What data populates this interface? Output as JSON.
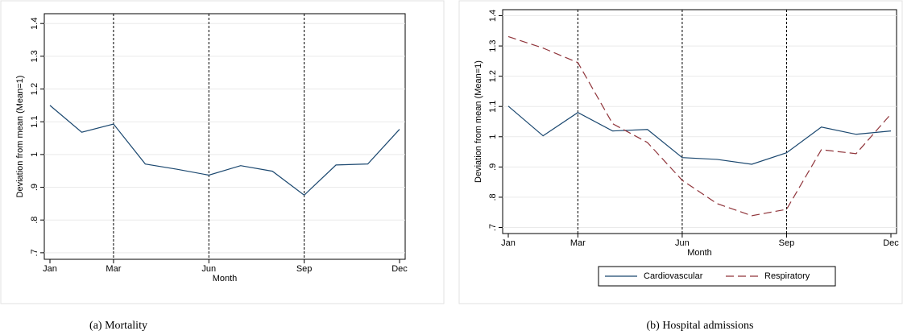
{
  "chart_data": [
    {
      "type": "line",
      "caption": "(a) Mortality",
      "xlabel": "Month",
      "ylabel": "Deviation from mean (Mean=1)",
      "categories": [
        "Jan",
        null,
        "Mar",
        null,
        null,
        "Jun",
        null,
        null,
        "Sep",
        null,
        null,
        "Dec"
      ],
      "series": [
        {
          "color": "#1a476f",
          "values": [
            1.15,
            1.068,
            1.093,
            0.971,
            0.955,
            0.937,
            0.966,
            0.949,
            0.876,
            0.968,
            0.971,
            1.077
          ]
        }
      ],
      "ylim": [
        0.68,
        1.43
      ],
      "yticks": [
        {
          "value": 0.7,
          "label": ".7"
        },
        {
          "value": 0.8,
          "label": ".8"
        },
        {
          "value": 0.9,
          "label": ".9"
        },
        1,
        1.1,
        1.2,
        1.3,
        1.4
      ],
      "grid": true
    },
    {
      "type": "line",
      "caption": "(b) Hospital admissions",
      "xlabel": "Month",
      "ylabel": "Deviation from mean (Mean=1)",
      "categories": [
        "Jan",
        null,
        "Mar",
        null,
        null,
        "Jun",
        null,
        null,
        "Sep",
        null,
        null,
        "Dec"
      ],
      "series": [
        {
          "name": "Cardiovascular",
          "color": "#1a476f",
          "dash": false,
          "values": [
            1.101,
            1.003,
            1.08,
            1.019,
            1.024,
            0.931,
            0.925,
            0.909,
            0.947,
            1.032,
            1.008,
            1.019
          ]
        },
        {
          "name": "Respiratory",
          "color": "#90353b",
          "dash": true,
          "values": [
            1.331,
            1.293,
            1.245,
            1.043,
            0.981,
            0.856,
            0.779,
            0.739,
            0.76,
            0.957,
            0.944,
            1.075
          ]
        }
      ],
      "ylim": [
        0.68,
        1.42
      ],
      "yticks": [
        {
          "value": 0.7,
          "label": ".7"
        },
        {
          "value": 0.8,
          "label": ".8"
        },
        {
          "value": 0.9,
          "label": ".9"
        },
        1,
        1.1,
        1.2,
        1.3,
        1.4
      ],
      "grid": true,
      "legend": "bottom"
    }
  ]
}
